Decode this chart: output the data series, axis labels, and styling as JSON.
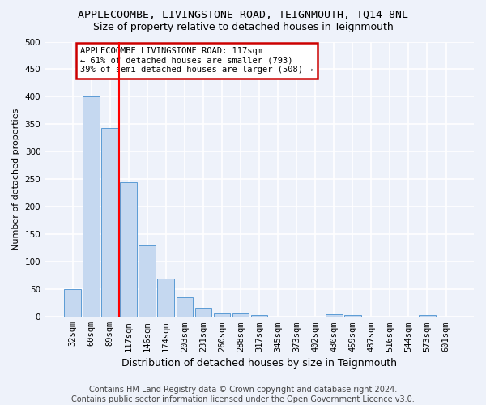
{
  "title": "APPLECOOMBE, LIVINGSTONE ROAD, TEIGNMOUTH, TQ14 8NL",
  "subtitle": "Size of property relative to detached houses in Teignmouth",
  "xlabel": "Distribution of detached houses by size in Teignmouth",
  "ylabel": "Number of detached properties",
  "categories": [
    "32sqm",
    "60sqm",
    "89sqm",
    "117sqm",
    "146sqm",
    "174sqm",
    "203sqm",
    "231sqm",
    "260sqm",
    "288sqm",
    "317sqm",
    "345sqm",
    "373sqm",
    "402sqm",
    "430sqm",
    "459sqm",
    "487sqm",
    "516sqm",
    "544sqm",
    "573sqm",
    "601sqm"
  ],
  "values": [
    50,
    400,
    343,
    245,
    130,
    70,
    36,
    16,
    7,
    7,
    3,
    1,
    1,
    1,
    5,
    4,
    1,
    1,
    1,
    3,
    0
  ],
  "bar_color": "#c5d8f0",
  "bar_edge_color": "#5b9bd5",
  "red_line_index": 3,
  "annotation_text": "APPLECOOMBE LIVINGSTONE ROAD: 117sqm\n← 61% of detached houses are smaller (793)\n39% of semi-detached houses are larger (508) →",
  "annotation_box_color": "#ffffff",
  "annotation_box_edge_color": "#cc0000",
  "ylim": [
    0,
    500
  ],
  "yticks": [
    0,
    50,
    100,
    150,
    200,
    250,
    300,
    350,
    400,
    450,
    500
  ],
  "footer_line1": "Contains HM Land Registry data © Crown copyright and database right 2024.",
  "footer_line2": "Contains public sector information licensed under the Open Government Licence v3.0.",
  "background_color": "#eef2fa",
  "grid_color": "#ffffff",
  "title_fontsize": 9.5,
  "subtitle_fontsize": 9,
  "tick_fontsize": 7.5,
  "ylabel_fontsize": 8,
  "xlabel_fontsize": 9,
  "annotation_fontsize": 7.5,
  "footer_fontsize": 7
}
